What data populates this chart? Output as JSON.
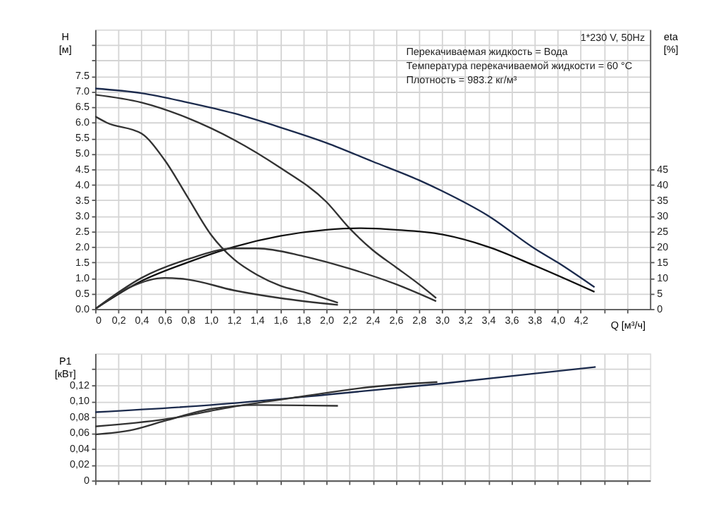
{
  "chart_data": [
    {
      "type": "line",
      "xlabel": "Q [м³/ч]",
      "ylabel": "H [м]",
      "y2label": "eta [%]",
      "annotations": [
        "1*230 V, 50Hz",
        "Перекачиваемая жидкость = Вода",
        "Температура перекачиваемой жидкости = 60 °C",
        "Плотность = 983.2 кг/м³"
      ],
      "xlim": [
        0,
        4.8
      ],
      "ylim": [
        0,
        9
      ],
      "y2lim": [
        0,
        90
      ],
      "xticks": [
        {
          "value": 0,
          "label": "0"
        },
        {
          "value": 0.2,
          "label": "0,2"
        },
        {
          "value": 0.4,
          "label": "0,4"
        },
        {
          "value": 0.6,
          "label": "0,6"
        },
        {
          "value": 0.8,
          "label": "0,8"
        },
        {
          "value": 1.0,
          "label": "1,0"
        },
        {
          "value": 1.2,
          "label": "1,2"
        },
        {
          "value": 1.4,
          "label": "1,4"
        },
        {
          "value": 1.6,
          "label": "1,6"
        },
        {
          "value": 1.8,
          "label": "1,8"
        },
        {
          "value": 2.0,
          "label": "2,0"
        },
        {
          "value": 2.2,
          "label": "2,2"
        },
        {
          "value": 2.4,
          "label": "2,4"
        },
        {
          "value": 2.6,
          "label": "2,6"
        },
        {
          "value": 2.8,
          "label": "2,8"
        },
        {
          "value": 3.0,
          "label": "3,0"
        },
        {
          "value": 3.2,
          "label": "3,2"
        },
        {
          "value": 3.4,
          "label": "3,4"
        },
        {
          "value": 3.6,
          "label": "3,6"
        },
        {
          "value": 3.8,
          "label": "3,8"
        },
        {
          "value": 4.0,
          "label": "4,0"
        },
        {
          "value": 4.2,
          "label": "4,2"
        },
        {
          "value": 4.4,
          "label": null
        },
        {
          "value": 4.6,
          "label": null
        }
      ],
      "yticks": [
        {
          "value": 0,
          "label": "0.0"
        },
        {
          "value": 0.5,
          "label": "0.5"
        },
        {
          "value": 1,
          "label": "1.0"
        },
        {
          "value": 1.5,
          "label": "1.5"
        },
        {
          "value": 2,
          "label": "2.0"
        },
        {
          "value": 2.5,
          "label": "2.5"
        },
        {
          "value": 3,
          "label": "3.0"
        },
        {
          "value": 3.5,
          "label": "3.5"
        },
        {
          "value": 4,
          "label": "4.0"
        },
        {
          "value": 4.5,
          "label": "4.5"
        },
        {
          "value": 5,
          "label": "5.0"
        },
        {
          "value": 5.5,
          "label": "5.5"
        },
        {
          "value": 6,
          "label": "6.0"
        },
        {
          "value": 6.5,
          "label": "6.5"
        },
        {
          "value": 7,
          "label": "7.0"
        },
        {
          "value": 7.5,
          "label": "7.5"
        },
        {
          "value": 8,
          "label": null
        },
        {
          "value": 8.5,
          "label": null
        }
      ],
      "y2ticks": [
        0,
        5,
        10,
        15,
        20,
        25,
        30,
        35,
        40,
        45
      ],
      "grid": true,
      "legend": false,
      "series": [
        {
          "color": "#1c2b4d",
          "x": [
            0,
            0.4,
            0.8,
            1.2,
            1.6,
            2.0,
            2.4,
            2.8,
            3.0,
            3.4,
            3.8,
            4.0,
            4.32
          ],
          "values": [
            7.1,
            6.95,
            6.65,
            6.3,
            5.85,
            5.35,
            4.75,
            4.15,
            3.8,
            3.0,
            1.95,
            1.5,
            0.7
          ]
        },
        {
          "color": "#333333",
          "x": [
            0,
            0.4,
            0.8,
            1.2,
            1.6,
            2.0,
            2.2,
            2.4,
            2.6,
            2.8,
            2.95
          ],
          "values": [
            6.9,
            6.65,
            6.15,
            5.45,
            4.55,
            3.45,
            2.6,
            1.9,
            1.35,
            0.8,
            0.35
          ]
        },
        {
          "color": "#333333",
          "x": [
            0,
            0.1,
            0.4,
            0.6,
            0.8,
            1.0,
            1.2,
            1.4,
            1.6,
            1.8,
            2.1
          ],
          "values": [
            6.2,
            6.0,
            5.65,
            4.8,
            3.6,
            2.4,
            1.6,
            1.1,
            0.75,
            0.55,
            0.2
          ]
        },
        {
          "color": "#111111",
          "axis": "y2",
          "x": [
            0,
            0.4,
            0.8,
            1.2,
            1.6,
            2.0,
            2.3,
            2.6,
            3.0,
            3.4,
            3.8,
            4.32
          ],
          "values": [
            0,
            9,
            15,
            20,
            23.5,
            25.5,
            26,
            25.5,
            24,
            20,
            14,
            5.5
          ]
        },
        {
          "color": "#333333",
          "axis": "y2",
          "x": [
            0,
            0.4,
            0.8,
            1.2,
            1.4,
            1.8,
            2.2,
            2.6,
            2.95
          ],
          "values": [
            0,
            10,
            16,
            19.5,
            19.5,
            17,
            13,
            8,
            2.5
          ]
        },
        {
          "color": "#333333",
          "axis": "y2",
          "x": [
            0,
            0.3,
            0.6,
            0.8,
            1.2,
            1.6,
            2.1
          ],
          "values": [
            0,
            7,
            10,
            9.5,
            6,
            3.5,
            1.3
          ]
        }
      ]
    },
    {
      "type": "line",
      "ylabel": "P1 [кВт]",
      "xlim": [
        0,
        4.8
      ],
      "ylim": [
        0,
        0.16
      ],
      "tick_labels": "y",
      "grid": true,
      "legend": false,
      "xticks": [
        0,
        0.2,
        0.4,
        0.6,
        0.8,
        1.0,
        1.2,
        1.4,
        1.6,
        1.8,
        2.0,
        2.2,
        2.4,
        2.6,
        2.8,
        3.0,
        3.2,
        3.4,
        3.6,
        3.8,
        4.0,
        4.2,
        4.4,
        4.6
      ],
      "yticks": [
        {
          "value": 0,
          "label": "0"
        },
        {
          "value": 0.02,
          "label": "0,02"
        },
        {
          "value": 0.04,
          "label": "0,04"
        },
        {
          "value": 0.06,
          "label": "0,06"
        },
        {
          "value": 0.08,
          "label": "0,08"
        },
        {
          "value": 0.1,
          "label": "0,10"
        },
        {
          "value": 0.12,
          "label": "0,12"
        },
        {
          "value": 0.14,
          "label": null
        }
      ],
      "series": [
        {
          "color": "#1c2b4d",
          "x": [
            0,
            1,
            2,
            3,
            4.33
          ],
          "values": [
            0.086,
            0.095,
            0.108,
            0.122,
            0.143
          ]
        },
        {
          "color": "#333333",
          "x": [
            0,
            0.6,
            1.2,
            1.8,
            2.4,
            2.96
          ],
          "values": [
            0.068,
            0.077,
            0.093,
            0.106,
            0.118,
            0.124
          ]
        },
        {
          "color": "#333333",
          "x": [
            0,
            0.3,
            0.6,
            1.0,
            1.4,
            2.1
          ],
          "values": [
            0.058,
            0.063,
            0.075,
            0.09,
            0.095,
            0.094
          ]
        }
      ]
    }
  ]
}
